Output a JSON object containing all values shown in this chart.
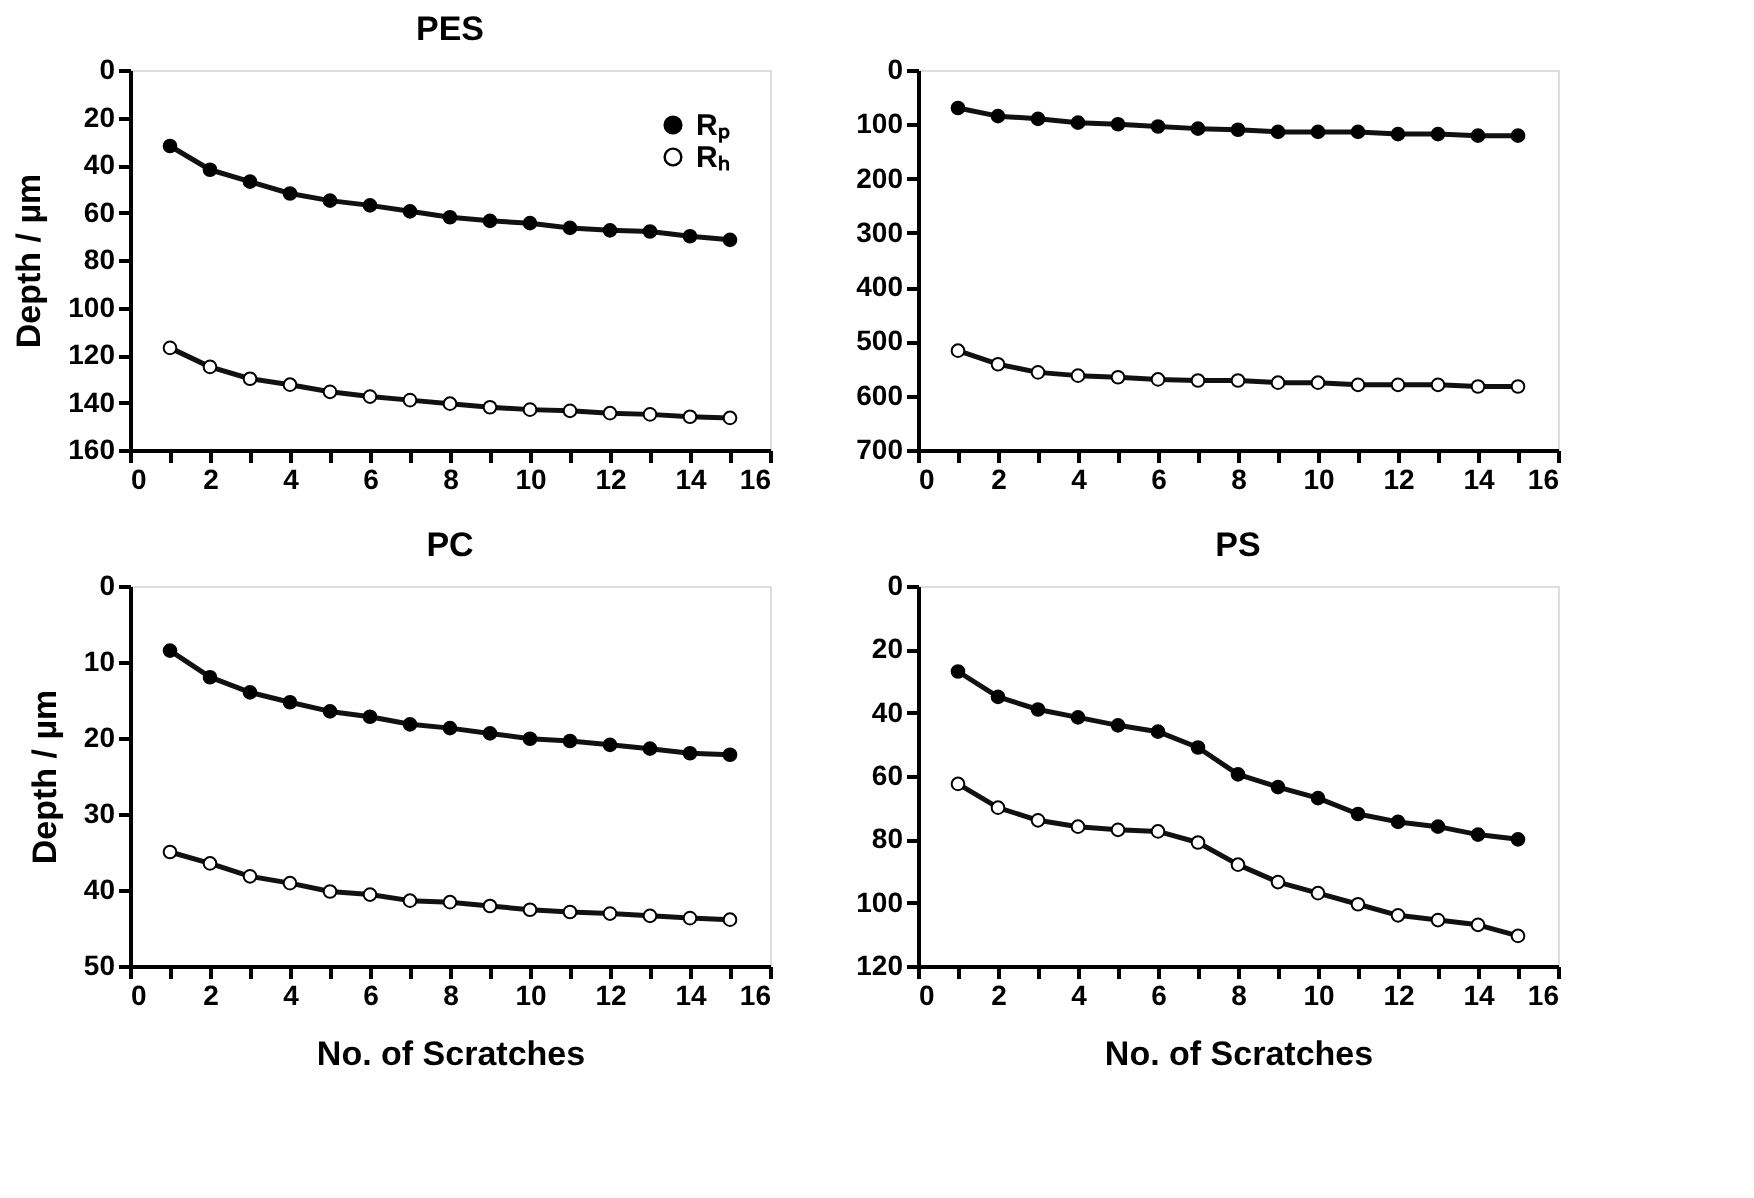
{
  "chart_data": [
    {
      "type": "line",
      "title": "PES",
      "ylabel": "Depth / µm",
      "x": [
        1,
        2,
        3,
        4,
        5,
        6,
        7,
        8,
        9,
        10,
        11,
        12,
        13,
        14,
        15
      ],
      "xlim": [
        0,
        16
      ],
      "xticks": [
        0,
        {
          "value": 1,
          "label": null
        },
        2,
        {
          "value": 3,
          "label": null
        },
        4,
        {
          "value": 5,
          "label": null
        },
        6,
        {
          "value": 7,
          "label": null
        },
        8,
        {
          "value": 9,
          "label": null
        },
        10,
        {
          "value": 11,
          "label": null
        },
        12,
        {
          "value": 13,
          "label": null
        },
        14,
        {
          "value": 15,
          "label": null
        },
        16
      ],
      "ylim": [
        160,
        0
      ],
      "yticks": [
        0,
        20,
        40,
        60,
        80,
        100,
        120,
        140,
        160
      ],
      "marker": "circle",
      "line_style": "solid",
      "grid": false,
      "legend": "top right",
      "series": [
        {
          "name": "Rₚ",
          "color": "#000000",
          "values": [
            32,
            42,
            47,
            52,
            55,
            57,
            59.5,
            62,
            63.5,
            64.5,
            66.5,
            67.5,
            68,
            70,
            71.5
          ]
        },
        {
          "name": "Rₕ",
          "color": "#ffffff",
          "values": [
            117,
            125,
            130,
            132.5,
            135.5,
            137.5,
            139,
            140.5,
            142,
            143,
            143.5,
            144.5,
            145,
            146,
            146.5
          ]
        }
      ]
    },
    {
      "type": "line",
      "x": [
        1,
        2,
        3,
        4,
        5,
        6,
        7,
        8,
        9,
        10,
        11,
        12,
        13,
        14,
        15
      ],
      "xlim": [
        0,
        16
      ],
      "xticks": [
        0,
        {
          "value": 1,
          "label": null
        },
        2,
        {
          "value": 3,
          "label": null
        },
        4,
        {
          "value": 5,
          "label": null
        },
        6,
        {
          "value": 7,
          "label": null
        },
        8,
        {
          "value": 9,
          "label": null
        },
        10,
        {
          "value": 11,
          "label": null
        },
        12,
        {
          "value": 13,
          "label": null
        },
        14,
        {
          "value": 15,
          "label": null
        },
        16
      ],
      "ylim": [
        700,
        0
      ],
      "yticks": [
        0,
        100,
        200,
        300,
        400,
        500,
        600,
        700
      ],
      "marker": "circle",
      "line_style": "solid",
      "grid": false,
      "series": [
        {
          "color": "#000000",
          "values": [
            70,
            85,
            90,
            97,
            100,
            104,
            108,
            110,
            114,
            114,
            114,
            118,
            118,
            121,
            121
          ]
        },
        {
          "color": "#ffffff",
          "values": [
            517,
            542,
            557,
            563,
            566,
            570,
            572,
            572,
            576,
            576,
            580,
            580,
            580,
            583,
            583
          ]
        }
      ]
    },
    {
      "type": "line",
      "title": "PC",
      "ylabel": "Depth / µm",
      "xlabel": "No. of Scratches",
      "x": [
        1,
        2,
        3,
        4,
        5,
        6,
        7,
        8,
        9,
        10,
        11,
        12,
        13,
        14,
        15
      ],
      "xlim": [
        0,
        16
      ],
      "xticks": [
        0,
        {
          "value": 1,
          "label": null
        },
        2,
        {
          "value": 3,
          "label": null
        },
        4,
        {
          "value": 5,
          "label": null
        },
        6,
        {
          "value": 7,
          "label": null
        },
        8,
        {
          "value": 9,
          "label": null
        },
        10,
        {
          "value": 11,
          "label": null
        },
        12,
        {
          "value": 13,
          "label": null
        },
        14,
        {
          "value": 15,
          "label": null
        },
        16
      ],
      "ylim": [
        50,
        0
      ],
      "yticks": [
        0,
        10,
        20,
        30,
        40,
        50
      ],
      "marker": "circle",
      "line_style": "solid",
      "grid": false,
      "series": [
        {
          "color": "#000000",
          "values": [
            8.5,
            12,
            14,
            15.3,
            16.5,
            17.2,
            18.2,
            18.7,
            19.4,
            20.1,
            20.4,
            20.9,
            21.4,
            22,
            22.2
          ]
        },
        {
          "color": "#ffffff",
          "values": [
            35,
            36.5,
            38.2,
            39.1,
            40.2,
            40.6,
            41.4,
            41.6,
            42.1,
            42.6,
            42.9,
            43.1,
            43.4,
            43.7,
            43.9
          ]
        }
      ]
    },
    {
      "type": "line",
      "title": "PS",
      "xlabel": "No. of Scratches",
      "x": [
        1,
        2,
        3,
        4,
        5,
        6,
        7,
        8,
        9,
        10,
        11,
        12,
        13,
        14,
        15
      ],
      "xlim": [
        0,
        16
      ],
      "xticks": [
        0,
        {
          "value": 1,
          "label": null
        },
        2,
        {
          "value": 3,
          "label": null
        },
        4,
        {
          "value": 5,
          "label": null
        },
        6,
        {
          "value": 7,
          "label": null
        },
        8,
        {
          "value": 9,
          "label": null
        },
        10,
        {
          "value": 11,
          "label": null
        },
        12,
        {
          "value": 13,
          "label": null
        },
        14,
        {
          "value": 15,
          "label": null
        },
        16
      ],
      "ylim": [
        120,
        0
      ],
      "yticks": [
        0,
        20,
        40,
        60,
        80,
        100,
        120
      ],
      "marker": "circle",
      "line_style": "solid",
      "grid": false,
      "series": [
        {
          "color": "#000000",
          "values": [
            27,
            35,
            39,
            41.5,
            44,
            46,
            51,
            59.5,
            63.5,
            67,
            72,
            74.5,
            76,
            78.5,
            80
          ]
        },
        {
          "color": "#ffffff",
          "values": [
            62.5,
            70,
            74,
            76,
            77,
            77.5,
            81,
            88,
            93.5,
            97,
            100.5,
            104,
            105.5,
            107,
            110.5
          ]
        }
      ]
    }
  ]
}
